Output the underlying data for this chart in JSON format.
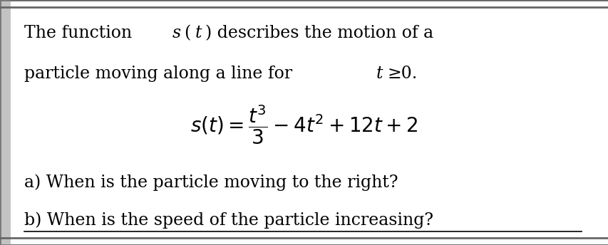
{
  "bg_color": "#e8e8e8",
  "box_bg": "#ffffff",
  "text_color": "#000000",
  "formula": "$s(t)=\\dfrac{t^{3}}{3}-4t^{2}+12t+2$",
  "qa": "a) When is the particle moving to the right?",
  "qb": "b) When is the speed of the particle increasing?",
  "border_color": "#666666",
  "left_accent_color": "#888888",
  "fs_main": 17,
  "fs_formula": 20
}
